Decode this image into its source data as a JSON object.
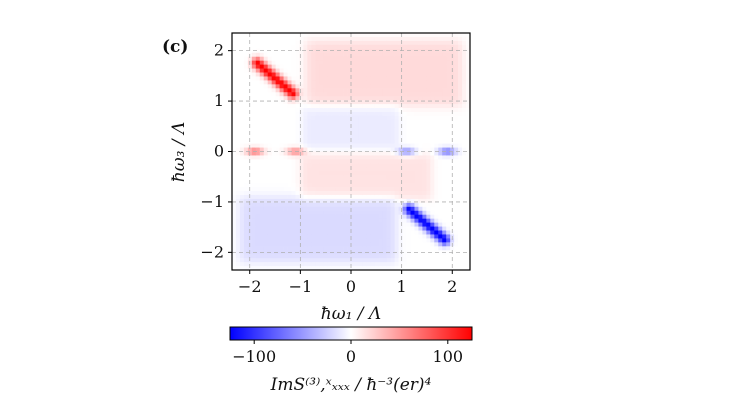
{
  "chart_data": {
    "type": "heatmap",
    "panel_label": "(c)",
    "xlabel": "ħω₁ / Λ",
    "ylabel": "ħω₃ / Λ",
    "xlim": [
      -2.35,
      2.35
    ],
    "ylim": [
      -2.35,
      2.35
    ],
    "xticks": [
      -2,
      -1,
      0,
      1,
      2
    ],
    "yticks": [
      -2,
      -1,
      0,
      1,
      2
    ],
    "xtick_labels": [
      "−2",
      "−1",
      "0",
      "1",
      "2"
    ],
    "ytick_labels": [
      "−2",
      "−1",
      "0",
      "1",
      "2"
    ],
    "grid": true,
    "colorbar": {
      "label": "ImS⁽³⁾,ˣₓₓₓ / ħ⁻³(er)⁴",
      "range": [
        -125,
        125
      ],
      "ticks": [
        -100,
        0,
        100
      ],
      "tick_labels": [
        "−100",
        "0",
        "100"
      ],
      "colormap": "bwr",
      "low_color": "#0000ff",
      "mid_color": "#ffffff",
      "high_color": "#ff0000",
      "orientation": "horizontal"
    },
    "features": [
      {
        "name": "upper-left diagonal peak",
        "x0": -1.85,
        "y0": 1.75,
        "x1": -1.15,
        "y1": 1.15,
        "value": 125
      },
      {
        "name": "lower-right diagonal dip",
        "x0": 1.15,
        "y0": -1.15,
        "x1": 1.85,
        "y1": -1.75,
        "value": -125
      },
      {
        "name": "upper band",
        "x0": -0.9,
        "y0": 0.9,
        "x1": 2.2,
        "y1": 2.2,
        "value": 18
      },
      {
        "name": "lower band",
        "x0": -2.2,
        "y0": -2.2,
        "x1": 0.9,
        "y1": -0.9,
        "value": -18
      },
      {
        "name": "spot (-1.9, 0)",
        "x": -1.9,
        "y": 0.0,
        "value": 65
      },
      {
        "name": "spot (-1.1, 0)",
        "x": -1.1,
        "y": 0.0,
        "value": 55
      },
      {
        "name": "spot (1.1, 0)",
        "x": 1.1,
        "y": 0.0,
        "value": -55
      },
      {
        "name": "spot (1.9, 0)",
        "x": 1.9,
        "y": 0.0,
        "value": -65
      }
    ]
  }
}
